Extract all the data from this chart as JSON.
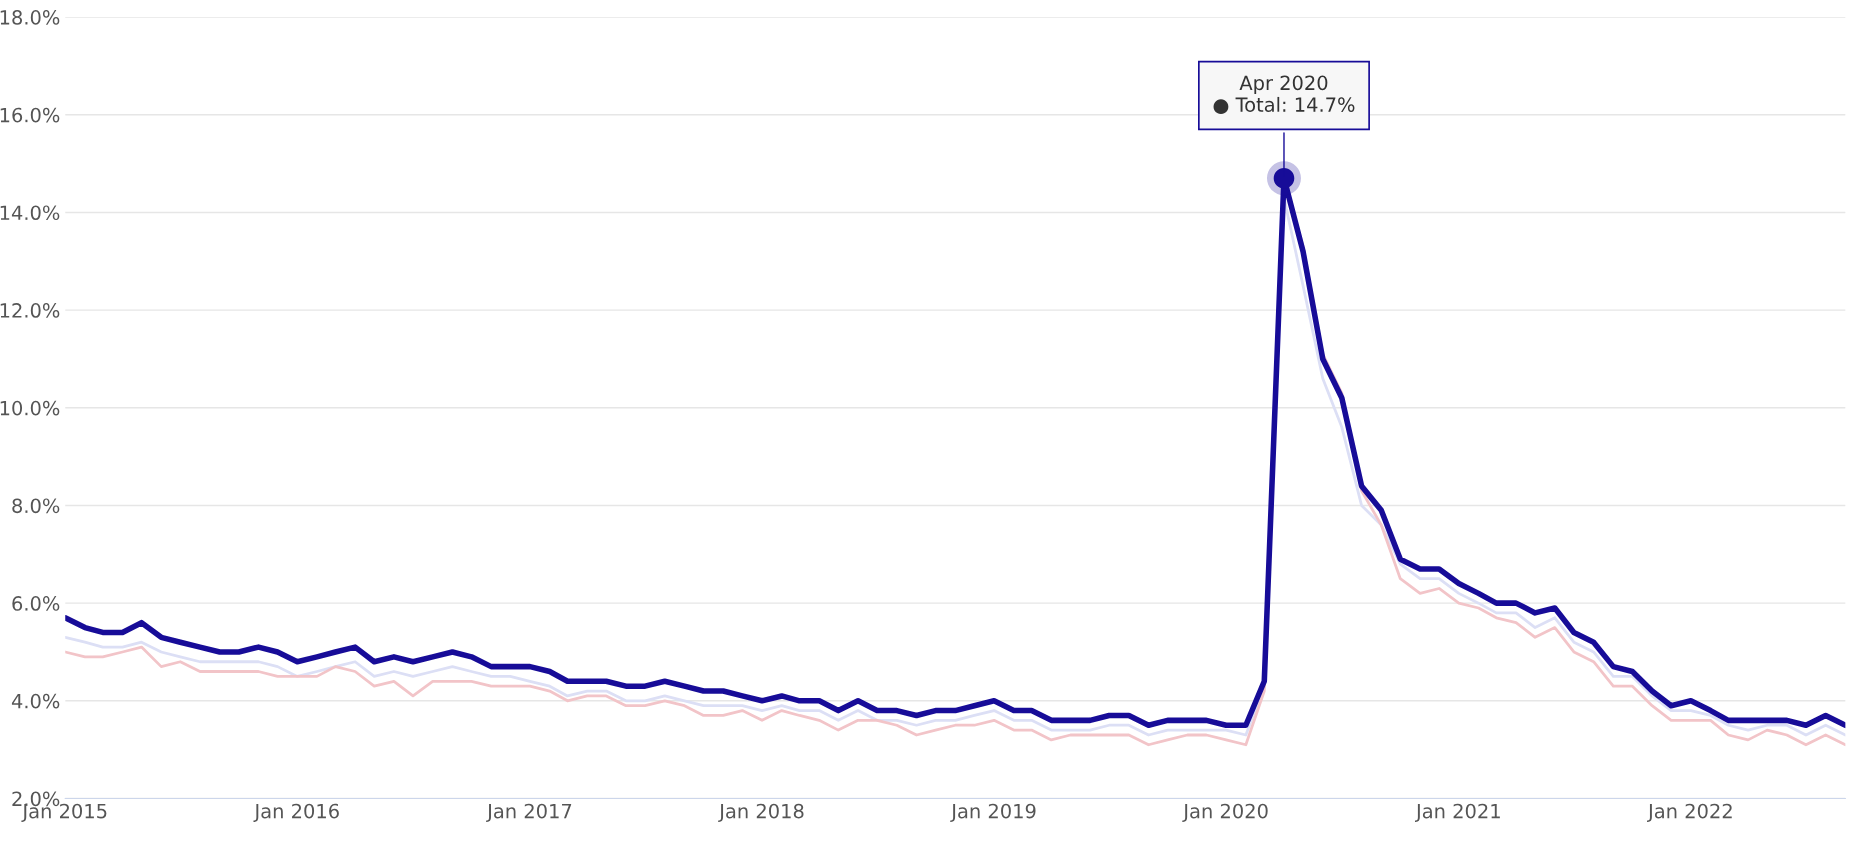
{
  "chart_data": {
    "type": "line",
    "x": [
      "2015-01",
      "2015-02",
      "2015-03",
      "2015-04",
      "2015-05",
      "2015-06",
      "2015-07",
      "2015-08",
      "2015-09",
      "2015-10",
      "2015-11",
      "2015-12",
      "2016-01",
      "2016-02",
      "2016-03",
      "2016-04",
      "2016-05",
      "2016-06",
      "2016-07",
      "2016-08",
      "2016-09",
      "2016-10",
      "2016-11",
      "2016-12",
      "2017-01",
      "2017-02",
      "2017-03",
      "2017-04",
      "2017-05",
      "2017-06",
      "2017-07",
      "2017-08",
      "2017-09",
      "2017-10",
      "2017-11",
      "2017-12",
      "2018-01",
      "2018-02",
      "2018-03",
      "2018-04",
      "2018-05",
      "2018-06",
      "2018-07",
      "2018-08",
      "2018-09",
      "2018-10",
      "2018-11",
      "2018-12",
      "2019-01",
      "2019-02",
      "2019-03",
      "2019-04",
      "2019-05",
      "2019-06",
      "2019-07",
      "2019-08",
      "2019-09",
      "2019-10",
      "2019-11",
      "2019-12",
      "2020-01",
      "2020-02",
      "2020-03",
      "2020-04",
      "2020-05",
      "2020-06",
      "2020-07",
      "2020-08",
      "2020-09",
      "2020-10",
      "2020-11",
      "2020-12",
      "2021-01",
      "2021-02",
      "2021-03",
      "2021-04",
      "2021-05",
      "2021-06",
      "2021-07",
      "2021-08",
      "2021-09",
      "2021-10",
      "2021-11",
      "2021-12",
      "2022-01",
      "2022-02",
      "2022-03",
      "2022-04",
      "2022-05",
      "2022-06",
      "2022-07",
      "2022-08",
      "2022-09"
    ],
    "series": [
      {
        "color": "#dcdff5",
        "values": [
          5.3,
          5.2,
          5.1,
          5.1,
          5.2,
          5.0,
          4.9,
          4.8,
          4.8,
          4.8,
          4.8,
          4.7,
          4.5,
          4.6,
          4.7,
          4.8,
          4.5,
          4.6,
          4.5,
          4.6,
          4.7,
          4.6,
          4.5,
          4.5,
          4.4,
          4.3,
          4.1,
          4.2,
          4.2,
          4.0,
          4.0,
          4.1,
          4.0,
          3.9,
          3.9,
          3.9,
          3.8,
          3.9,
          3.8,
          3.8,
          3.6,
          3.8,
          3.6,
          3.6,
          3.5,
          3.6,
          3.6,
          3.7,
          3.8,
          3.6,
          3.6,
          3.4,
          3.4,
          3.4,
          3.5,
          3.5,
          3.3,
          3.4,
          3.4,
          3.4,
          3.4,
          3.3,
          4.3,
          14.3,
          12.5,
          10.6,
          9.6,
          8.0,
          7.6,
          6.8,
          6.5,
          6.5,
          6.2,
          6.0,
          5.8,
          5.8,
          5.5,
          5.7,
          5.2,
          5.0,
          4.5,
          4.5,
          4.1,
          3.8,
          3.8,
          3.7,
          3.5,
          3.4,
          3.5,
          3.5,
          3.3,
          3.5,
          3.3
        ]
      },
      {
        "color": "#f2c4c8",
        "values": [
          5.0,
          4.9,
          4.9,
          5.0,
          5.1,
          4.7,
          4.8,
          4.6,
          4.6,
          4.6,
          4.6,
          4.5,
          4.5,
          4.5,
          4.7,
          4.6,
          4.3,
          4.4,
          4.1,
          4.4,
          4.4,
          4.4,
          4.3,
          4.3,
          4.3,
          4.2,
          4.0,
          4.1,
          4.1,
          3.9,
          3.9,
          4.0,
          3.9,
          3.7,
          3.7,
          3.8,
          3.6,
          3.8,
          3.7,
          3.6,
          3.4,
          3.6,
          3.6,
          3.5,
          3.3,
          3.4,
          3.5,
          3.5,
          3.6,
          3.4,
          3.4,
          3.2,
          3.3,
          3.3,
          3.3,
          3.3,
          3.1,
          3.2,
          3.3,
          3.3,
          3.2,
          3.1,
          4.2,
          14.7,
          13.3,
          11.1,
          10.3,
          8.3,
          7.6,
          6.5,
          6.2,
          6.3,
          6.0,
          5.9,
          5.7,
          5.6,
          5.3,
          5.5,
          5.0,
          4.8,
          4.3,
          4.3,
          3.9,
          3.6,
          3.6,
          3.6,
          3.3,
          3.2,
          3.4,
          3.3,
          3.1,
          3.3,
          3.1
        ]
      },
      {
        "color": "#170c98",
        "values": [
          5.7,
          5.5,
          5.4,
          5.4,
          5.6,
          5.3,
          5.2,
          5.1,
          5.0,
          5.0,
          5.1,
          5.0,
          4.8,
          4.9,
          5.0,
          5.1,
          4.8,
          4.9,
          4.8,
          4.9,
          5.0,
          4.9,
          4.7,
          4.7,
          4.7,
          4.6,
          4.4,
          4.4,
          4.4,
          4.3,
          4.3,
          4.4,
          4.3,
          4.2,
          4.2,
          4.1,
          4.0,
          4.1,
          4.0,
          4.0,
          3.8,
          4.0,
          3.8,
          3.8,
          3.7,
          3.8,
          3.8,
          3.9,
          4.0,
          3.8,
          3.8,
          3.6,
          3.6,
          3.6,
          3.7,
          3.7,
          3.5,
          3.6,
          3.6,
          3.6,
          3.5,
          3.5,
          4.4,
          14.7,
          13.2,
          11.0,
          10.2,
          8.4,
          7.9,
          6.9,
          6.7,
          6.7,
          6.4,
          6.2,
          6.0,
          6.0,
          5.8,
          5.9,
          5.4,
          5.2,
          4.7,
          4.6,
          4.2,
          3.9,
          4.0,
          3.8,
          3.6,
          3.6,
          3.6,
          3.6,
          3.5,
          3.7,
          3.5
        ]
      }
    ],
    "annotations": [
      {
        "text": "Apr 2020\n● Total: 14.7%",
        "x": "2020-04",
        "y": 14.7
      }
    ],
    "xlim": [
      "2015-01",
      "2022-09"
    ],
    "xticks": [
      {
        "value": "2015-01",
        "label": "Jan 2015"
      },
      {
        "value": "2016-01",
        "label": "Jan 2016"
      },
      {
        "value": "2017-01",
        "label": "Jan 2017"
      },
      {
        "value": "2018-01",
        "label": "Jan 2018"
      },
      {
        "value": "2019-01",
        "label": "Jan 2019"
      },
      {
        "value": "2020-01",
        "label": "Jan 2020"
      },
      {
        "value": "2021-01",
        "label": "Jan 2021"
      },
      {
        "value": "2022-01",
        "label": "Jan 2022"
      }
    ],
    "ylim": [
      2,
      18
    ],
    "yticks": [
      {
        "value": 2,
        "label": "2.0%"
      },
      {
        "value": 4,
        "label": "4.0%"
      },
      {
        "value": 6,
        "label": "6.0%"
      },
      {
        "value": 8,
        "label": "8.0%"
      },
      {
        "value": 10,
        "label": "10.0%"
      },
      {
        "value": 12,
        "label": "12.0%"
      },
      {
        "value": 14,
        "label": "14.0%"
      },
      {
        "value": 16,
        "label": "16.0%"
      },
      {
        "value": 18,
        "label": "18.0%"
      }
    ],
    "grid": "y",
    "legend": false
  }
}
